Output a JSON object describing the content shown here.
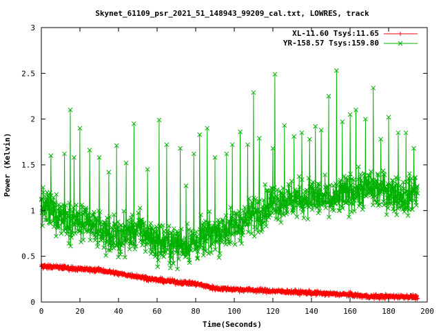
{
  "chart_data": {
    "type": "line",
    "title": "Skynet_61109_psr_2021_51_148943_99209_cal.txt, LOWRES, track",
    "xlabel": "Time(Seconds)",
    "ylabel": "Power (Kelvin)",
    "xlim": [
      0,
      200
    ],
    "ylim": [
      0,
      3
    ],
    "x_ticks": [
      "0",
      "20",
      "40",
      "60",
      "80",
      "100",
      "120",
      "140",
      "160",
      "180",
      "200"
    ],
    "y_ticks": [
      "0",
      "0.5",
      "1",
      "1.5",
      "2",
      "2.5",
      "3"
    ],
    "grid": false,
    "legend_position": "top-right",
    "series": [
      {
        "name": "XL-11.60 Tsys:11.65",
        "color": "#ff0000",
        "marker": "plus",
        "points": [
          [
            0,
            0.39
          ],
          [
            10,
            0.38
          ],
          [
            20,
            0.36
          ],
          [
            30,
            0.35
          ],
          [
            40,
            0.31
          ],
          [
            50,
            0.28
          ],
          [
            60,
            0.24
          ],
          [
            70,
            0.22
          ],
          [
            80,
            0.2
          ],
          [
            90,
            0.15
          ],
          [
            100,
            0.14
          ],
          [
            110,
            0.13
          ],
          [
            120,
            0.12
          ],
          [
            130,
            0.11
          ],
          [
            140,
            0.1
          ],
          [
            150,
            0.09
          ],
          [
            160,
            0.08
          ],
          [
            170,
            0.06
          ],
          [
            180,
            0.06
          ],
          [
            190,
            0.06
          ],
          [
            195,
            0.05
          ]
        ],
        "noise": 0.04
      },
      {
        "name": "YR-158.57 Tsys:159.80",
        "color": "#00b000",
        "marker": "x",
        "points": [
          [
            0,
            1.05
          ],
          [
            10,
            0.95
          ],
          [
            20,
            0.85
          ],
          [
            30,
            0.8
          ],
          [
            40,
            0.7
          ],
          [
            50,
            0.8
          ],
          [
            60,
            0.65
          ],
          [
            70,
            0.62
          ],
          [
            80,
            0.65
          ],
          [
            90,
            0.75
          ],
          [
            100,
            0.82
          ],
          [
            110,
            0.95
          ],
          [
            120,
            1.1
          ],
          [
            130,
            1.12
          ],
          [
            140,
            1.15
          ],
          [
            150,
            1.1
          ],
          [
            160,
            1.2
          ],
          [
            170,
            1.25
          ],
          [
            180,
            1.2
          ],
          [
            190,
            1.15
          ],
          [
            195,
            1.25
          ]
        ],
        "noise": 0.35,
        "spikes": [
          [
            5,
            1.6
          ],
          [
            12,
            1.62
          ],
          [
            15,
            2.1
          ],
          [
            17,
            1.58
          ],
          [
            20,
            1.9
          ],
          [
            25,
            1.66
          ],
          [
            30,
            1.58
          ],
          [
            35,
            1.42
          ],
          [
            39,
            1.71
          ],
          [
            44,
            1.52
          ],
          [
            48,
            1.95
          ],
          [
            55,
            1.45
          ],
          [
            61,
            1.99
          ],
          [
            65,
            1.72
          ],
          [
            72,
            1.68
          ],
          [
            75,
            1.27
          ],
          [
            79,
            1.62
          ],
          [
            82,
            1.83
          ],
          [
            86,
            1.9
          ],
          [
            90,
            1.58
          ],
          [
            96,
            1.62
          ],
          [
            99,
            1.72
          ],
          [
            103,
            1.86
          ],
          [
            107,
            1.72
          ],
          [
            110,
            2.29
          ],
          [
            113,
            1.79
          ],
          [
            120,
            1.68
          ],
          [
            121,
            2.49
          ],
          [
            126,
            1.93
          ],
          [
            131,
            1.81
          ],
          [
            135,
            1.85
          ],
          [
            139,
            1.78
          ],
          [
            142,
            1.92
          ],
          [
            145,
            1.88
          ],
          [
            149,
            2.25
          ],
          [
            153,
            2.53
          ],
          [
            156,
            1.97
          ],
          [
            160,
            2.05
          ],
          [
            163,
            2.1
          ],
          [
            168,
            2.0
          ],
          [
            172,
            2.34
          ],
          [
            176,
            1.78
          ],
          [
            180,
            2.02
          ],
          [
            185,
            1.85
          ],
          [
            189,
            1.85
          ],
          [
            193,
            1.68
          ]
        ]
      }
    ]
  }
}
